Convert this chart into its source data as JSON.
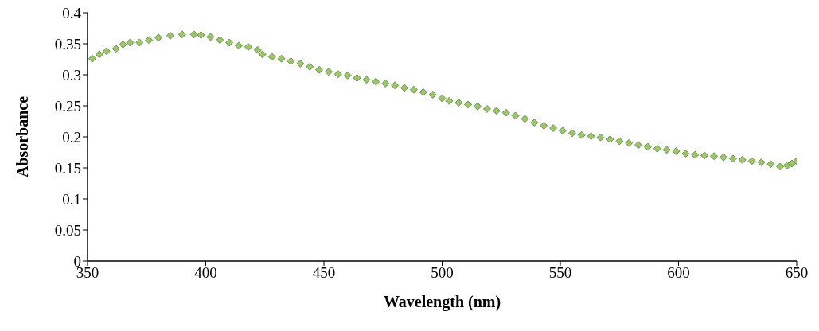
{
  "chart_data": {
    "type": "scatter",
    "xlabel": "Wavelength (nm)",
    "ylabel": "Absorbance",
    "xlim": [
      350,
      650
    ],
    "xticks": [
      350,
      400,
      450,
      500,
      550,
      600,
      650
    ],
    "ylim": [
      0,
      0.4
    ],
    "yticks": [
      0,
      0.05,
      0.1,
      0.15,
      0.2,
      0.25,
      0.3,
      0.35,
      0.4
    ],
    "marker": "diamond",
    "grid": false,
    "legend": false,
    "x": [
      352,
      355,
      358,
      362,
      365,
      368,
      372,
      376,
      380,
      385,
      390,
      395,
      398,
      402,
      406,
      410,
      414,
      418,
      422,
      424,
      428,
      432,
      436,
      440,
      444,
      448,
      452,
      456,
      460,
      464,
      468,
      472,
      476,
      480,
      484,
      488,
      492,
      496,
      500,
      503,
      507,
      511,
      515,
      519,
      523,
      527,
      531,
      535,
      539,
      543,
      547,
      551,
      555,
      559,
      563,
      567,
      571,
      575,
      579,
      583,
      587,
      591,
      595,
      599,
      603,
      607,
      611,
      615,
      619,
      623,
      627,
      631,
      635,
      639,
      643,
      646,
      648,
      650
    ],
    "series": [
      {
        "color": "#92d050",
        "values": [
          0.326,
          0.333,
          0.338,
          0.342,
          0.349,
          0.352,
          0.352,
          0.356,
          0.36,
          0.363,
          0.365,
          0.365,
          0.364,
          0.361,
          0.356,
          0.352,
          0.347,
          0.345,
          0.34,
          0.333,
          0.329,
          0.326,
          0.322,
          0.318,
          0.313,
          0.308,
          0.305,
          0.301,
          0.299,
          0.295,
          0.292,
          0.289,
          0.286,
          0.283,
          0.279,
          0.276,
          0.272,
          0.268,
          0.262,
          0.258,
          0.255,
          0.252,
          0.249,
          0.245,
          0.242,
          0.239,
          0.234,
          0.229,
          0.223,
          0.218,
          0.214,
          0.21,
          0.206,
          0.203,
          0.201,
          0.199,
          0.196,
          0.193,
          0.19,
          0.187,
          0.184,
          0.181,
          0.179,
          0.177,
          0.173,
          0.171,
          0.17,
          0.169,
          0.167,
          0.165,
          0.163,
          0.161,
          0.159,
          0.156,
          0.152,
          0.154,
          0.157,
          0.161
        ]
      }
    ]
  }
}
